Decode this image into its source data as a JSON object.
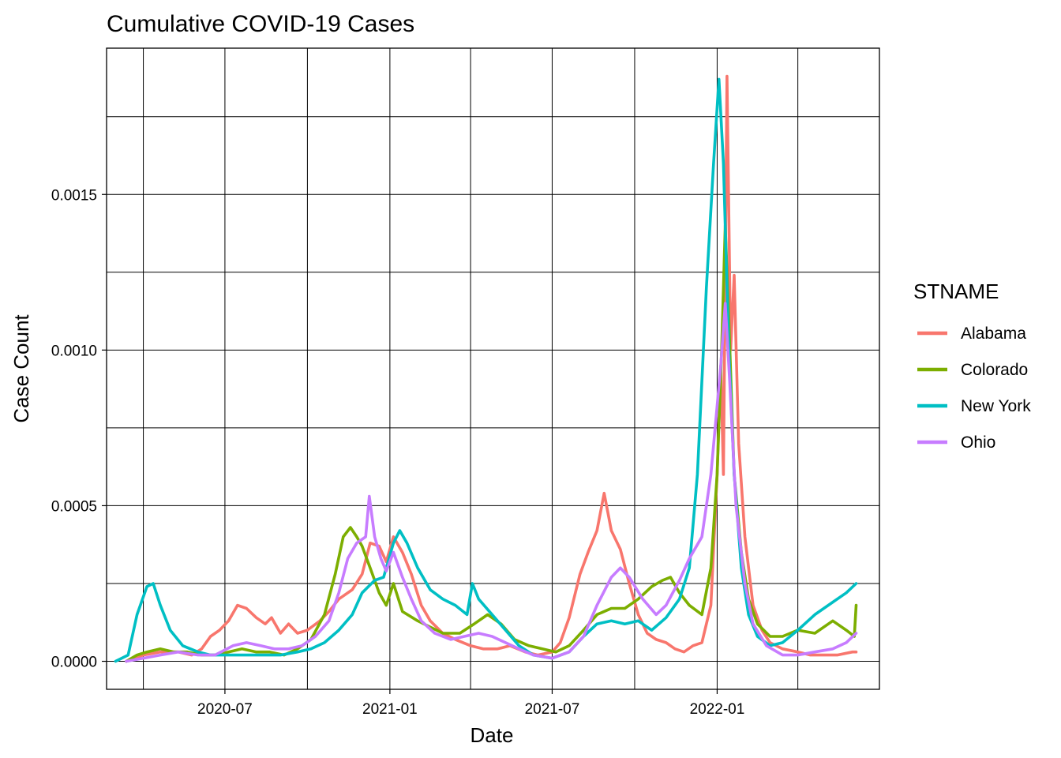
{
  "chart_data": {
    "type": "line",
    "title": "Cumulative COVID-19 Cases",
    "xlabel": "Date",
    "ylabel": "Case Count",
    "x_ticks": [
      "2020-07",
      "2021-01",
      "2021-07",
      "2022-01"
    ],
    "y_ticks": [
      "0.0000",
      "0.0005",
      "0.0010",
      "0.0015"
    ],
    "xlim": [
      "2020-02-20",
      "2022-07-01"
    ],
    "ylim": [
      -9e-05,
      0.00197
    ],
    "grid": true,
    "legend": {
      "title": "STNAME",
      "position": "right"
    },
    "series": [
      {
        "name": "Alabama",
        "color": "#F8766D",
        "points": [
          [
            "2020-03-13",
            0.0
          ],
          [
            "2020-04-01",
            2e-05
          ],
          [
            "2020-04-20",
            3e-05
          ],
          [
            "2020-05-10",
            3e-05
          ],
          [
            "2020-05-25",
            2e-05
          ],
          [
            "2020-06-05",
            4e-05
          ],
          [
            "2020-06-15",
            8e-05
          ],
          [
            "2020-06-25",
            0.0001
          ],
          [
            "2020-07-05",
            0.00013
          ],
          [
            "2020-07-15",
            0.00018
          ],
          [
            "2020-07-25",
            0.00017
          ],
          [
            "2020-08-05",
            0.00014
          ],
          [
            "2020-08-15",
            0.00012
          ],
          [
            "2020-08-22",
            0.00014
          ],
          [
            "2020-09-01",
            9e-05
          ],
          [
            "2020-09-10",
            0.00012
          ],
          [
            "2020-09-20",
            9e-05
          ],
          [
            "2020-10-01",
            0.0001
          ],
          [
            "2020-10-15",
            0.00013
          ],
          [
            "2020-10-25",
            0.00016
          ],
          [
            "2020-11-05",
            0.0002
          ],
          [
            "2020-11-20",
            0.00023
          ],
          [
            "2020-12-01",
            0.00028
          ],
          [
            "2020-12-10",
            0.00038
          ],
          [
            "2020-12-20",
            0.00037
          ],
          [
            "2020-12-28",
            0.00032
          ],
          [
            "2021-01-05",
            0.0004
          ],
          [
            "2021-01-15",
            0.00035
          ],
          [
            "2021-01-25",
            0.00028
          ],
          [
            "2021-02-05",
            0.00018
          ],
          [
            "2021-02-15",
            0.00013
          ],
          [
            "2021-03-01",
            9e-05
          ],
          [
            "2021-03-15",
            7e-05
          ],
          [
            "2021-04-01",
            5e-05
          ],
          [
            "2021-04-15",
            4e-05
          ],
          [
            "2021-05-01",
            4e-05
          ],
          [
            "2021-05-15",
            5e-05
          ],
          [
            "2021-06-01",
            3e-05
          ],
          [
            "2021-06-15",
            2e-05
          ],
          [
            "2021-07-01",
            3e-05
          ],
          [
            "2021-07-10",
            6e-05
          ],
          [
            "2021-07-20",
            0.00014
          ],
          [
            "2021-08-01",
            0.00028
          ],
          [
            "2021-08-10",
            0.00035
          ],
          [
            "2021-08-20",
            0.00042
          ],
          [
            "2021-08-28",
            0.00054
          ],
          [
            "2021-09-05",
            0.00042
          ],
          [
            "2021-09-15",
            0.00036
          ],
          [
            "2021-09-25",
            0.00025
          ],
          [
            "2021-10-05",
            0.00015
          ],
          [
            "2021-10-15",
            9e-05
          ],
          [
            "2021-10-25",
            7e-05
          ],
          [
            "2021-11-05",
            6e-05
          ],
          [
            "2021-11-15",
            4e-05
          ],
          [
            "2021-11-25",
            3e-05
          ],
          [
            "2021-12-05",
            5e-05
          ],
          [
            "2021-12-15",
            6e-05
          ],
          [
            "2021-12-25",
            0.00018
          ],
          [
            "2022-01-01",
            0.0006
          ],
          [
            "2022-01-05",
            0.00095
          ],
          [
            "2022-01-08",
            0.0006
          ],
          [
            "2022-01-12",
            0.00188
          ],
          [
            "2022-01-16",
            0.001
          ],
          [
            "2022-01-20",
            0.00124
          ],
          [
            "2022-01-25",
            0.0007
          ],
          [
            "2022-02-01",
            0.0004
          ],
          [
            "2022-02-10",
            0.00018
          ],
          [
            "2022-02-20",
            0.0001
          ],
          [
            "2022-03-01",
            6e-05
          ],
          [
            "2022-03-15",
            4e-05
          ],
          [
            "2022-04-01",
            3e-05
          ],
          [
            "2022-04-15",
            2e-05
          ],
          [
            "2022-05-01",
            2e-05
          ],
          [
            "2022-05-15",
            2e-05
          ],
          [
            "2022-06-01",
            3e-05
          ],
          [
            "2022-06-05",
            3e-05
          ]
        ]
      },
      {
        "name": "Colorado",
        "color": "#7CAE00",
        "points": [
          [
            "2020-03-13",
            0.0
          ],
          [
            "2020-03-25",
            2e-05
          ],
          [
            "2020-04-05",
            3e-05
          ],
          [
            "2020-04-20",
            4e-05
          ],
          [
            "2020-05-05",
            3e-05
          ],
          [
            "2020-05-20",
            3e-05
          ],
          [
            "2020-06-05",
            2e-05
          ],
          [
            "2020-06-20",
            2e-05
          ],
          [
            "2020-07-05",
            3e-05
          ],
          [
            "2020-07-20",
            4e-05
          ],
          [
            "2020-08-05",
            3e-05
          ],
          [
            "2020-08-20",
            3e-05
          ],
          [
            "2020-09-05",
            2e-05
          ],
          [
            "2020-09-20",
            4e-05
          ],
          [
            "2020-10-05",
            7e-05
          ],
          [
            "2020-10-20",
            0.00015
          ],
          [
            "2020-11-01",
            0.00028
          ],
          [
            "2020-11-10",
            0.0004
          ],
          [
            "2020-11-18",
            0.00043
          ],
          [
            "2020-11-25",
            0.0004
          ],
          [
            "2020-12-01",
            0.00037
          ],
          [
            "2020-12-10",
            0.0003
          ],
          [
            "2020-12-20",
            0.00022
          ],
          [
            "2020-12-28",
            0.00018
          ],
          [
            "2021-01-05",
            0.00025
          ],
          [
            "2021-01-15",
            0.00016
          ],
          [
            "2021-02-01",
            0.00013
          ],
          [
            "2021-02-15",
            0.00011
          ],
          [
            "2021-03-01",
            9e-05
          ],
          [
            "2021-03-20",
            9e-05
          ],
          [
            "2021-04-05",
            0.00012
          ],
          [
            "2021-04-20",
            0.00015
          ],
          [
            "2021-05-05",
            0.00012
          ],
          [
            "2021-05-20",
            7e-05
          ],
          [
            "2021-06-05",
            5e-05
          ],
          [
            "2021-06-20",
            4e-05
          ],
          [
            "2021-07-05",
            3e-05
          ],
          [
            "2021-07-20",
            5e-05
          ],
          [
            "2021-08-05",
            0.0001
          ],
          [
            "2021-08-20",
            0.00015
          ],
          [
            "2021-09-05",
            0.00017
          ],
          [
            "2021-09-20",
            0.00017
          ],
          [
            "2021-10-05",
            0.0002
          ],
          [
            "2021-10-20",
            0.00024
          ],
          [
            "2021-11-01",
            0.00026
          ],
          [
            "2021-11-10",
            0.00027
          ],
          [
            "2021-11-20",
            0.00022
          ],
          [
            "2021-12-01",
            0.00018
          ],
          [
            "2021-12-15",
            0.00015
          ],
          [
            "2021-12-25",
            0.0003
          ],
          [
            "2022-01-01",
            0.0006
          ],
          [
            "2022-01-06",
            0.001
          ],
          [
            "2022-01-10",
            0.0014
          ],
          [
            "2022-01-14",
            0.0011
          ],
          [
            "2022-01-20",
            0.0006
          ],
          [
            "2022-01-28",
            0.00035
          ],
          [
            "2022-02-05",
            0.0002
          ],
          [
            "2022-02-15",
            0.00012
          ],
          [
            "2022-03-01",
            8e-05
          ],
          [
            "2022-03-15",
            8e-05
          ],
          [
            "2022-04-01",
            0.0001
          ],
          [
            "2022-04-20",
            9e-05
          ],
          [
            "2022-05-10",
            0.00013
          ],
          [
            "2022-05-25",
            0.0001
          ],
          [
            "2022-06-03",
            8e-05
          ],
          [
            "2022-06-05",
            0.00018
          ]
        ]
      },
      {
        "name": "New York",
        "color": "#00BFC4",
        "points": [
          [
            "2020-03-01",
            0.0
          ],
          [
            "2020-03-15",
            2e-05
          ],
          [
            "2020-03-25",
            0.00015
          ],
          [
            "2020-04-05",
            0.00024
          ],
          [
            "2020-04-12",
            0.00025
          ],
          [
            "2020-04-20",
            0.00018
          ],
          [
            "2020-05-01",
            0.0001
          ],
          [
            "2020-05-15",
            5e-05
          ],
          [
            "2020-06-01",
            3e-05
          ],
          [
            "2020-06-15",
            2e-05
          ],
          [
            "2020-07-01",
            2e-05
          ],
          [
            "2020-08-01",
            2e-05
          ],
          [
            "2020-09-01",
            2e-05
          ],
          [
            "2020-09-20",
            3e-05
          ],
          [
            "2020-10-05",
            4e-05
          ],
          [
            "2020-10-20",
            6e-05
          ],
          [
            "2020-11-05",
            0.0001
          ],
          [
            "2020-11-20",
            0.00015
          ],
          [
            "2020-12-01",
            0.00022
          ],
          [
            "2020-12-15",
            0.00026
          ],
          [
            "2020-12-25",
            0.00027
          ],
          [
            "2021-01-05",
            0.00038
          ],
          [
            "2021-01-12",
            0.00042
          ],
          [
            "2021-01-20",
            0.00038
          ],
          [
            "2021-02-01",
            0.0003
          ],
          [
            "2021-02-15",
            0.00023
          ],
          [
            "2021-03-01",
            0.0002
          ],
          [
            "2021-03-15",
            0.00018
          ],
          [
            "2021-03-28",
            0.00015
          ],
          [
            "2021-04-03",
            0.00025
          ],
          [
            "2021-04-10",
            0.0002
          ],
          [
            "2021-04-25",
            0.00015
          ],
          [
            "2021-05-10",
            0.0001
          ],
          [
            "2021-05-25",
            5e-05
          ],
          [
            "2021-06-10",
            2e-05
          ],
          [
            "2021-07-01",
            1e-05
          ],
          [
            "2021-07-20",
            3e-05
          ],
          [
            "2021-08-05",
            8e-05
          ],
          [
            "2021-08-20",
            0.00012
          ],
          [
            "2021-09-05",
            0.00013
          ],
          [
            "2021-09-20",
            0.00012
          ],
          [
            "2021-10-05",
            0.00013
          ],
          [
            "2021-10-20",
            0.0001
          ],
          [
            "2021-11-05",
            0.00014
          ],
          [
            "2021-11-20",
            0.0002
          ],
          [
            "2021-12-01",
            0.0003
          ],
          [
            "2021-12-10",
            0.0006
          ],
          [
            "2021-12-20",
            0.0012
          ],
          [
            "2021-12-28",
            0.0016
          ],
          [
            "2022-01-03",
            0.00187
          ],
          [
            "2022-01-08",
            0.0016
          ],
          [
            "2022-01-14",
            0.001
          ],
          [
            "2022-01-20",
            0.0006
          ],
          [
            "2022-01-28",
            0.0003
          ],
          [
            "2022-02-05",
            0.00015
          ],
          [
            "2022-02-15",
            8e-05
          ],
          [
            "2022-03-01",
            5e-05
          ],
          [
            "2022-03-15",
            6e-05
          ],
          [
            "2022-04-01",
            0.0001
          ],
          [
            "2022-04-20",
            0.00015
          ],
          [
            "2022-05-10",
            0.00019
          ],
          [
            "2022-05-25",
            0.00022
          ],
          [
            "2022-06-05",
            0.00025
          ]
        ]
      },
      {
        "name": "Ohio",
        "color": "#C77CFF",
        "points": [
          [
            "2020-03-13",
            0.0
          ],
          [
            "2020-04-01",
            1e-05
          ],
          [
            "2020-04-20",
            2e-05
          ],
          [
            "2020-05-10",
            3e-05
          ],
          [
            "2020-06-01",
            2e-05
          ],
          [
            "2020-06-20",
            2e-05
          ],
          [
            "2020-07-10",
            5e-05
          ],
          [
            "2020-07-25",
            6e-05
          ],
          [
            "2020-08-10",
            5e-05
          ],
          [
            "2020-08-25",
            4e-05
          ],
          [
            "2020-09-10",
            4e-05
          ],
          [
            "2020-09-25",
            5e-05
          ],
          [
            "2020-10-10",
            8e-05
          ],
          [
            "2020-10-25",
            0.00013
          ],
          [
            "2020-11-05",
            0.00022
          ],
          [
            "2020-11-15",
            0.00033
          ],
          [
            "2020-11-25",
            0.00038
          ],
          [
            "2020-12-05",
            0.0004
          ],
          [
            "2020-12-09",
            0.00053
          ],
          [
            "2020-12-15",
            0.0004
          ],
          [
            "2020-12-22",
            0.00033
          ],
          [
            "2020-12-28",
            0.00029
          ],
          [
            "2021-01-05",
            0.00035
          ],
          [
            "2021-01-15",
            0.00027
          ],
          [
            "2021-01-25",
            0.0002
          ],
          [
            "2021-02-05",
            0.00013
          ],
          [
            "2021-02-20",
            9e-05
          ],
          [
            "2021-03-10",
            7e-05
          ],
          [
            "2021-03-25",
            8e-05
          ],
          [
            "2021-04-10",
            9e-05
          ],
          [
            "2021-04-25",
            8e-05
          ],
          [
            "2021-05-10",
            6e-05
          ],
          [
            "2021-05-25",
            4e-05
          ],
          [
            "2021-06-10",
            2e-05
          ],
          [
            "2021-07-01",
            1e-05
          ],
          [
            "2021-07-20",
            3e-05
          ],
          [
            "2021-08-05",
            8e-05
          ],
          [
            "2021-08-20",
            0.00018
          ],
          [
            "2021-09-05",
            0.00027
          ],
          [
            "2021-09-15",
            0.0003
          ],
          [
            "2021-09-25",
            0.00027
          ],
          [
            "2021-10-10",
            0.0002
          ],
          [
            "2021-10-25",
            0.00015
          ],
          [
            "2021-11-05",
            0.00018
          ],
          [
            "2021-11-20",
            0.00026
          ],
          [
            "2021-12-01",
            0.00033
          ],
          [
            "2021-12-15",
            0.0004
          ],
          [
            "2021-12-25",
            0.0006
          ],
          [
            "2022-01-01",
            0.00082
          ],
          [
            "2022-01-05",
            0.00095
          ],
          [
            "2022-01-10",
            0.00115
          ],
          [
            "2022-01-15",
            0.0009
          ],
          [
            "2022-01-22",
            0.0005
          ],
          [
            "2022-02-01",
            0.00025
          ],
          [
            "2022-02-10",
            0.00012
          ],
          [
            "2022-02-25",
            5e-05
          ],
          [
            "2022-03-15",
            2e-05
          ],
          [
            "2022-04-01",
            2e-05
          ],
          [
            "2022-04-20",
            3e-05
          ],
          [
            "2022-05-10",
            4e-05
          ],
          [
            "2022-05-25",
            6e-05
          ],
          [
            "2022-06-05",
            9e-05
          ]
        ]
      }
    ]
  }
}
